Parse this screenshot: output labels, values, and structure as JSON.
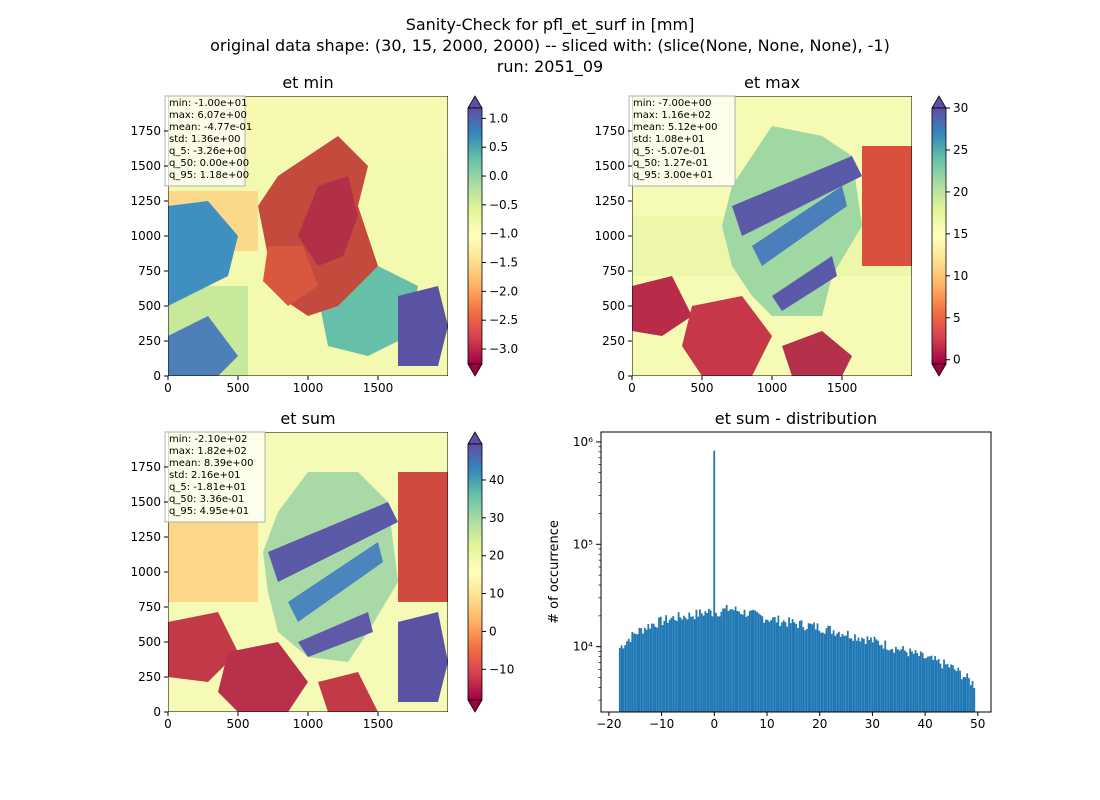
{
  "figure": {
    "title_lines": [
      "Sanity-Check for pfl_et_surf in [mm]",
      "original data shape: (30, 15, 2000, 2000) -- sliced with: (slice(None, None, None), -1)",
      "run: 2051_09"
    ]
  },
  "chart_data": [
    {
      "type": "heatmap",
      "title": "et min",
      "colormap": "Spectral",
      "x_ticks": [
        0,
        500,
        1000,
        1500
      ],
      "y_ticks": [
        0,
        250,
        500,
        750,
        1000,
        1250,
        1500,
        1750
      ],
      "xlim": [
        0,
        2000
      ],
      "ylim": [
        0,
        2000
      ],
      "colorbar": {
        "range": [
          -3.26,
          1.18
        ],
        "ticks": [
          1.0,
          0.5,
          0.0,
          -0.5,
          -1.0,
          -1.5,
          -2.0,
          -2.5,
          -3.0
        ],
        "tick_labels": [
          "1.0",
          "0.5",
          "0.0",
          "−0.5",
          "−1.0",
          "−1.5",
          "−2.0",
          "−2.5",
          "−3.0"
        ],
        "extend": "both"
      },
      "stats": [
        "min: -1.00e+01",
        "max: 6.07e+00",
        "mean: -4.77e-01",
        "std: 1.36e+00",
        "q_5: -3.26e+00",
        "q_50: 0.00e+00",
        "q_95: 1.18e+00"
      ]
    },
    {
      "type": "heatmap",
      "title": "et max",
      "colormap": "Spectral",
      "x_ticks": [
        0,
        500,
        1000,
        1500
      ],
      "y_ticks": [
        0,
        250,
        500,
        750,
        1000,
        1250,
        1500,
        1750
      ],
      "xlim": [
        0,
        2000
      ],
      "ylim": [
        0,
        2000
      ],
      "colorbar": {
        "range": [
          -0.507,
          30.0
        ],
        "ticks": [
          30,
          25,
          20,
          15,
          10,
          5,
          0
        ],
        "tick_labels": [
          "30",
          "25",
          "20",
          "15",
          "10",
          "5",
          "0"
        ],
        "extend": "both"
      },
      "stats": [
        "min: -7.00e+00",
        "max: 1.16e+02",
        "mean: 5.12e+00",
        "std: 1.08e+01",
        "q_5: -5.07e-01",
        "q_50: 1.27e-01",
        "q_95: 3.00e+01"
      ]
    },
    {
      "type": "heatmap",
      "title": "et sum",
      "colormap": "Spectral",
      "x_ticks": [
        0,
        500,
        1000,
        1500
      ],
      "y_ticks": [
        0,
        250,
        500,
        750,
        1000,
        1250,
        1500,
        1750
      ],
      "xlim": [
        0,
        2000
      ],
      "ylim": [
        0,
        2000
      ],
      "colorbar": {
        "range": [
          -18.1,
          49.5
        ],
        "ticks": [
          40,
          30,
          20,
          10,
          0,
          -10
        ],
        "tick_labels": [
          "40",
          "30",
          "20",
          "10",
          "0",
          "−10"
        ],
        "extend": "both"
      },
      "stats": [
        "min: -2.10e+02",
        "max: 1.82e+02",
        "mean: 8.39e+00",
        "std: 2.16e+01",
        "q_5: -1.81e+01",
        "q_50: 3.36e-01",
        "q_95: 4.95e+01"
      ]
    },
    {
      "type": "bar",
      "title": "et sum - distribution",
      "ylabel": "# of occurrence",
      "yscale": "log",
      "xlim": [
        -21.5,
        52.5
      ],
      "ylim": [
        2300,
        1250000
      ],
      "x_ticks": [
        -20,
        -10,
        0,
        10,
        20,
        30,
        40,
        50
      ],
      "x_tick_labels": [
        "−20",
        "−10",
        "0",
        "10",
        "20",
        "30",
        "40",
        "50"
      ],
      "y_ticks": [
        10000,
        100000,
        1000000
      ],
      "y_tick_labels": [
        "10⁴",
        "10⁵",
        "10⁶"
      ],
      "bin_range": [
        -18.1,
        49.5
      ],
      "bin_count": 200,
      "profile_points": [
        [
          -18.1,
          9500
        ],
        [
          -15,
          13500
        ],
        [
          -12,
          16500
        ],
        [
          -8,
          19000
        ],
        [
          -4,
          20500
        ],
        [
          -1,
          22000
        ],
        [
          0,
          21500
        ],
        [
          3,
          23500
        ],
        [
          6,
          21500
        ],
        [
          10,
          19000
        ],
        [
          15,
          17000
        ],
        [
          20,
          15500
        ],
        [
          25,
          13500
        ],
        [
          30,
          11500
        ],
        [
          35,
          9500
        ],
        [
          40,
          7800
        ],
        [
          45,
          6300
        ],
        [
          49.5,
          4200
        ]
      ],
      "spike": {
        "x": 0.0,
        "value": 820000
      }
    }
  ]
}
